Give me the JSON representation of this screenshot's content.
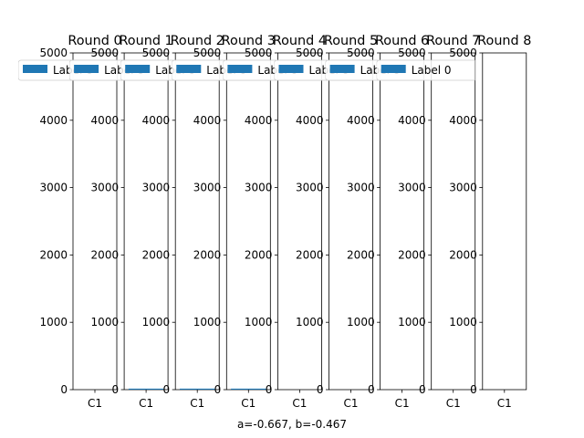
{
  "chart_data": {
    "type": "bar",
    "layout": "small-multiples",
    "footer": "a=-0.667, b=-0.467",
    "ylim": [
      0,
      5000
    ],
    "yticks": [
      "0",
      "1000",
      "2000",
      "3000",
      "4000",
      "5000"
    ],
    "categories": [
      "C1"
    ],
    "bar_color": "#1f77b4",
    "legend_placement": "top-left",
    "panels": [
      {
        "title": "Round 0",
        "legend": "Label 0",
        "values": [
          0
        ]
      },
      {
        "title": "Round 1",
        "legend": "Label 0",
        "values": [
          15
        ]
      },
      {
        "title": "Round 2",
        "legend": "Label 0",
        "values": [
          15
        ]
      },
      {
        "title": "Round 3",
        "legend": "Label 0",
        "values": [
          15
        ]
      },
      {
        "title": "Round 4",
        "legend": "Label 0",
        "values": [
          0
        ]
      },
      {
        "title": "Round 5",
        "legend": "Label 0",
        "values": [
          0
        ]
      },
      {
        "title": "Round 6",
        "legend": "Label 0",
        "values": [
          0
        ]
      },
      {
        "title": "Round 7",
        "legend": "Label 0",
        "values": [
          0
        ]
      },
      {
        "title": "Round 8",
        "legend": "",
        "values": [
          0
        ]
      }
    ]
  }
}
